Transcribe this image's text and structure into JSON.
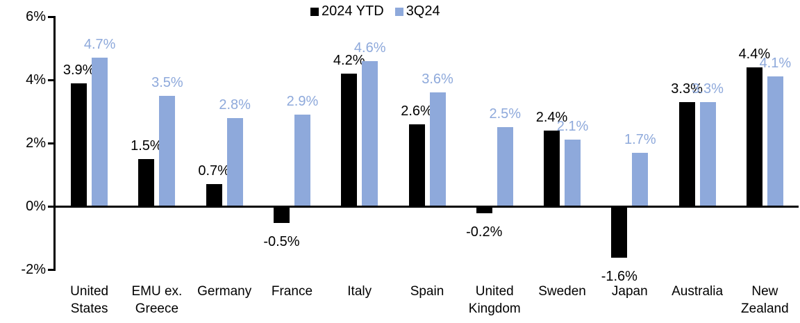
{
  "legend": {
    "items": [
      {
        "label": "2024 YTD",
        "color": "#000000"
      },
      {
        "label": "3Q24",
        "color": "#8EA9DB"
      }
    ]
  },
  "chart_data": {
    "type": "bar",
    "title": "",
    "xlabel": "",
    "ylabel": "",
    "grid": false,
    "legend_position": "top-center",
    "categories": [
      "United\nStates",
      "EMU ex.\nGreece",
      "Germany",
      "France",
      "Italy",
      "Spain",
      "United\nKingdom",
      "Sweden",
      "Japan",
      "Australia",
      "New\nZealand"
    ],
    "series": [
      {
        "name": "2024 YTD",
        "color": "#000000",
        "values": [
          3.9,
          1.5,
          0.7,
          -0.5,
          4.2,
          2.6,
          -0.2,
          2.4,
          -1.6,
          3.3,
          4.4
        ],
        "labels": [
          "3.9%",
          "1.5%",
          "0.7%",
          "-0.5%",
          "4.2%",
          "2.6%",
          "-0.2%",
          "2.4%",
          "-1.6%",
          "3.3%",
          "4.4%"
        ]
      },
      {
        "name": "3Q24",
        "color": "#8EA9DB",
        "values": [
          4.7,
          3.5,
          2.8,
          2.9,
          4.6,
          3.6,
          2.5,
          2.1,
          1.7,
          3.3,
          4.1
        ],
        "labels": [
          "4.7%",
          "3.5%",
          "2.8%",
          "2.9%",
          "4.6%",
          "3.6%",
          "2.5%",
          "2.1%",
          "1.7%",
          "3.3%",
          "4.1%"
        ]
      }
    ],
    "y_axis": {
      "min": -2,
      "max": 6,
      "ticks": [
        {
          "value": 6,
          "label": "6%"
        },
        {
          "value": 4,
          "label": "4%"
        },
        {
          "value": 2,
          "label": "2%"
        },
        {
          "value": 0,
          "label": "0%"
        },
        {
          "value": -2,
          "label": "-2%"
        }
      ]
    }
  }
}
